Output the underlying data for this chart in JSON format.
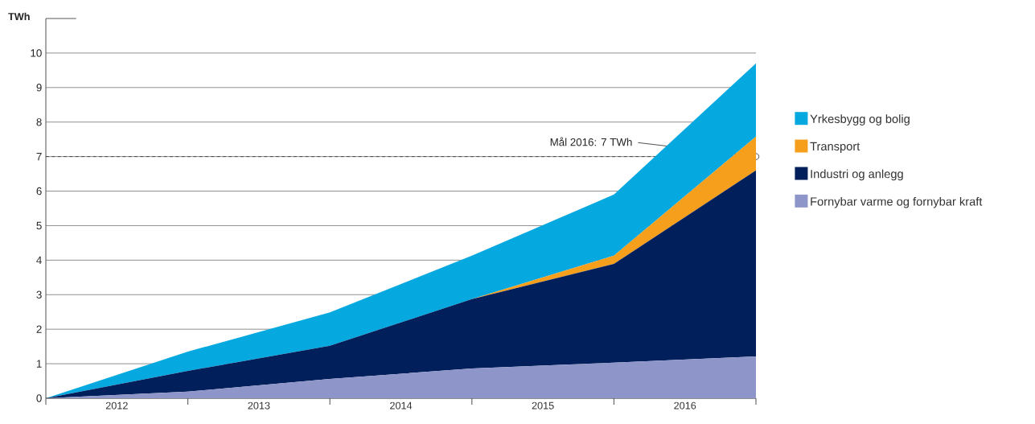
{
  "chart_data": {
    "type": "area",
    "stacked": true,
    "ylabel": "TWh",
    "x": [
      2012,
      2013,
      2014,
      2015,
      2016,
      2017
    ],
    "xlim": [
      2012,
      2017
    ],
    "xticks": [
      {
        "value": 2012,
        "label": null
      },
      {
        "value": 2012.5,
        "label": "2012"
      },
      {
        "value": 2013,
        "label": null
      },
      {
        "value": 2013.5,
        "label": "2013"
      },
      {
        "value": 2014,
        "label": null
      },
      {
        "value": 2014.5,
        "label": "2014"
      },
      {
        "value": 2015,
        "label": null
      },
      {
        "value": 2015.5,
        "label": "2015"
      },
      {
        "value": 2016,
        "label": null
      },
      {
        "value": 2016.5,
        "label": "2016"
      },
      {
        "value": 2017,
        "label": null
      }
    ],
    "ylim": [
      0,
      11
    ],
    "yticks": [
      0,
      1,
      2,
      3,
      4,
      5,
      6,
      7,
      8,
      9,
      10
    ],
    "grid": "y",
    "legend": "right",
    "series": [
      {
        "name": "Fornybar varme og fornybar kraft",
        "color": "#8d95c9",
        "values": [
          0,
          0.19,
          0.56,
          0.86,
          1.03,
          1.21
        ]
      },
      {
        "name": "Industri og anlegg",
        "color": "#001f5b",
        "values": [
          0,
          0.6,
          0.96,
          2.01,
          2.86,
          5.39
        ]
      },
      {
        "name": "Transport",
        "color": "#f59f1d",
        "values": [
          0,
          0,
          0,
          0,
          0.24,
          0.98
        ]
      },
      {
        "name": "Yrkesbygg og bolig",
        "color": "#06a8e0",
        "values": [
          0,
          0.56,
          0.97,
          1.26,
          1.77,
          2.12
        ]
      }
    ],
    "ref_lines": [
      {
        "axis": "y",
        "value": 7,
        "line_style": "dashed"
      }
    ],
    "annotations": [
      {
        "text": "Mål 2016: 7 TWh",
        "x": 2017,
        "y": 7
      }
    ]
  }
}
